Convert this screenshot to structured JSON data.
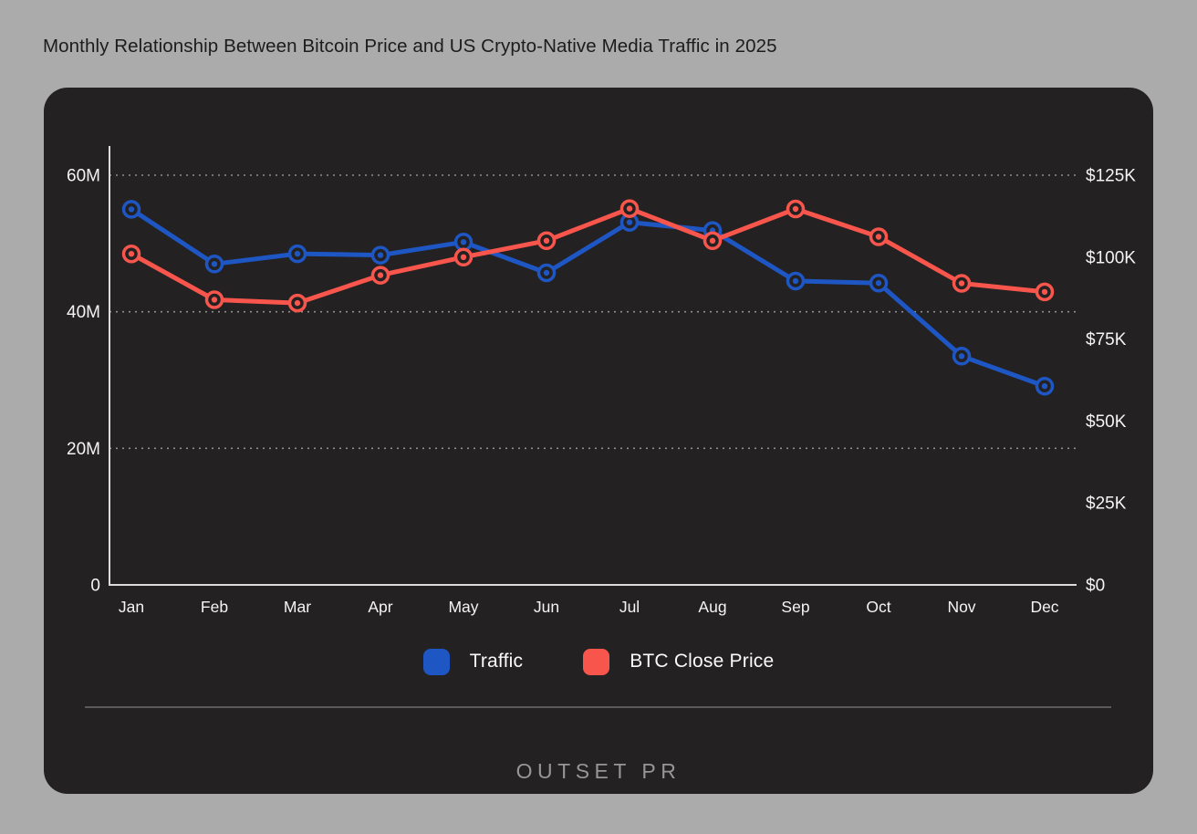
{
  "page_title": "Monthly Relationship Between Bitcoin Price and US Crypto-Native Media Traffic in 2025",
  "colors": {
    "traffic_blue": "#1E56C4",
    "btc_red": "#F8564C",
    "card_background": "#232122",
    "page_background": "#ABABAB",
    "grid_line": "#8F8F8F",
    "axis_line": "#DCDCDC",
    "tick_text": "#F4F4F4",
    "title_text": "#1C1C1C",
    "legend_text": "#FAFAFA",
    "divider": "#5A5A5A",
    "logo_text": "#969696"
  },
  "chart_data": {
    "type": "line",
    "title": "Monthly Relationship Between Bitcoin Price and US Crypto-Native Media Traffic in 2025",
    "categories": [
      "Jan",
      "Feb",
      "Mar",
      "Apr",
      "May",
      "Jun",
      "Jul",
      "Aug",
      "Sep",
      "Oct",
      "Nov",
      "Dec"
    ],
    "series": [
      {
        "name": "Traffic",
        "axis": "left",
        "color_key": "traffic_blue",
        "value_unit": "M",
        "values": [
          55,
          47,
          48.5,
          48.3,
          50.2,
          45.7,
          53.1,
          51.9,
          44.5,
          44.2,
          33.5,
          29.1
        ]
      },
      {
        "name": "BTC Close Price",
        "axis": "right",
        "color_key": "btc_red",
        "value_unit": "$K",
        "values": [
          101,
          87,
          86,
          94.5,
          100,
          105,
          114.8,
          105,
          114.7,
          106.2,
          92,
          89.4
        ]
      }
    ],
    "left_axis": {
      "tick_labels": [
        "0",
        "20M",
        "40M",
        "60M"
      ],
      "tick_values": [
        0,
        20,
        40,
        60
      ],
      "min": 0,
      "max": 60,
      "gridlines": [
        20,
        40,
        60
      ],
      "gridline_style": "dotted"
    },
    "right_axis": {
      "tick_labels": [
        "$0",
        "$25K",
        "$50K",
        "$75K",
        "$100K",
        "$125K"
      ],
      "tick_values": [
        0,
        25,
        50,
        75,
        100,
        125
      ],
      "min": 0,
      "max": 125
    },
    "legend_position": "bottom"
  },
  "footer": {
    "logo_text": "OUTSET PR"
  }
}
